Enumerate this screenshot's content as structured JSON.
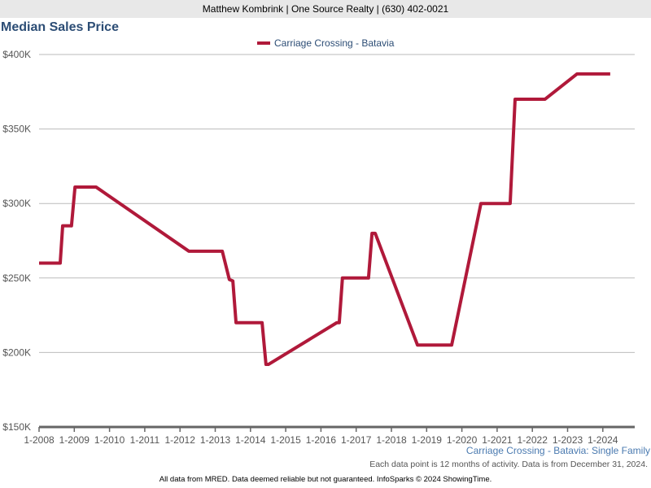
{
  "header": {
    "agent": "Matthew Kombrink | One Source Realty | (630) 402-0021"
  },
  "source_label": "Carriage Crossing - Batavia: Single Family",
  "note": "Each data point is 12 months of activity. Data is from December 31, 2024.",
  "footer": "All data from MRED. Data deemed reliable but not guaranteed. InfoSparks © 2024 ShowingTime.",
  "colors": {
    "series": "#b0193a",
    "title": "#2c4d75"
  },
  "chart_data": {
    "type": "line",
    "title": "Median Sales Price",
    "xlabel": "",
    "ylabel": "",
    "xlim": [
      2008,
      2024.9
    ],
    "ylim": [
      150000,
      400000
    ],
    "y_ticks": [
      150000,
      200000,
      250000,
      300000,
      350000,
      400000
    ],
    "y_tick_labels": [
      "$150K",
      "$200K",
      "$250K",
      "$300K",
      "$350K",
      "$400K"
    ],
    "x_ticks": [
      2008,
      2009,
      2010,
      2011,
      2012,
      2013,
      2014,
      2015,
      2016,
      2017,
      2018,
      2019,
      2020,
      2021,
      2022,
      2023,
      2024
    ],
    "x_tick_labels": [
      "1-2008",
      "1-2009",
      "1-2010",
      "1-2011",
      "1-2012",
      "1-2013",
      "1-2014",
      "1-2015",
      "1-2016",
      "1-2017",
      "1-2018",
      "1-2019",
      "1-2020",
      "1-2021",
      "1-2022",
      "1-2023",
      "1-2024"
    ],
    "grid": true,
    "legend_position": "top-center",
    "series": [
      {
        "name": "Carriage Crossing - Batavia",
        "x": [
          2008.0,
          2008.6,
          2008.67,
          2008.92,
          2009.02,
          2009.62,
          2012.25,
          2013.2,
          2013.4,
          2013.5,
          2013.59,
          2014.33,
          2014.44,
          2014.51,
          2016.45,
          2016.52,
          2016.61,
          2017.35,
          2017.45,
          2017.54,
          2018.74,
          2019.71,
          2020.54,
          2021.37,
          2021.51,
          2022.36,
          2023.27,
          2024.21
        ],
        "values": [
          260000,
          260000,
          285000,
          285000,
          311000,
          311000,
          268000,
          268000,
          249000,
          248000,
          220000,
          220000,
          192000,
          192000,
          220000,
          220000,
          250000,
          250000,
          280000,
          280000,
          205000,
          205000,
          300000,
          300000,
          370000,
          370000,
          387000,
          387000
        ]
      }
    ]
  }
}
